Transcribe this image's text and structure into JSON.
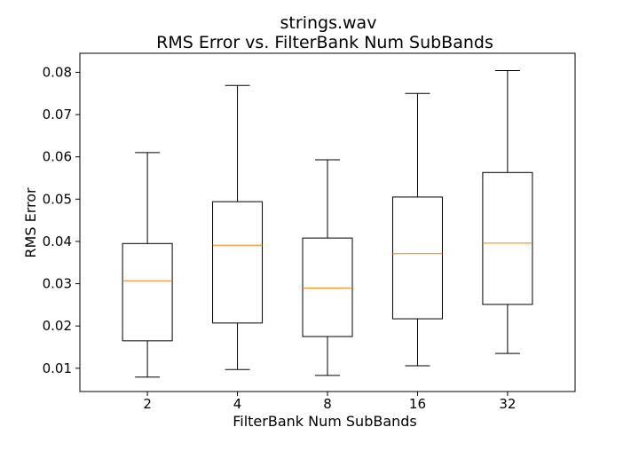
{
  "chart_data": {
    "type": "box",
    "title": "strings.wav",
    "subtitle": "RMS Error vs. FilterBank Num SubBands",
    "xlabel": "FilterBank Num SubBands",
    "ylabel": "RMS Error",
    "categories": [
      "2",
      "4",
      "8",
      "16",
      "32"
    ],
    "ylim": [
      0.0045,
      0.0845
    ],
    "yticks": [
      0.01,
      0.02,
      0.03,
      0.04,
      0.05,
      0.06,
      0.07,
      0.08
    ],
    "ytick_labels": [
      "0.01",
      "0.02",
      "0.03",
      "0.04",
      "0.05",
      "0.06",
      "0.07",
      "0.08"
    ],
    "grid": false,
    "boxes": [
      {
        "category": "2",
        "whisker_low": 0.0079,
        "q1": 0.0165,
        "median": 0.0307,
        "q3": 0.0395,
        "whisker_high": 0.061
      },
      {
        "category": "4",
        "whisker_low": 0.0097,
        "q1": 0.0207,
        "median": 0.0391,
        "q3": 0.0494,
        "whisker_high": 0.0769
      },
      {
        "category": "8",
        "whisker_low": 0.0083,
        "q1": 0.0175,
        "median": 0.029,
        "q3": 0.0408,
        "whisker_high": 0.0593
      },
      {
        "category": "16",
        "whisker_low": 0.0106,
        "q1": 0.0217,
        "median": 0.0371,
        "q3": 0.0505,
        "whisker_high": 0.075
      },
      {
        "category": "32",
        "whisker_low": 0.0135,
        "q1": 0.0251,
        "median": 0.0396,
        "q3": 0.0563,
        "whisker_high": 0.0804
      }
    ],
    "colors": {
      "box": "#000000",
      "median": "#ff7f0e"
    }
  }
}
